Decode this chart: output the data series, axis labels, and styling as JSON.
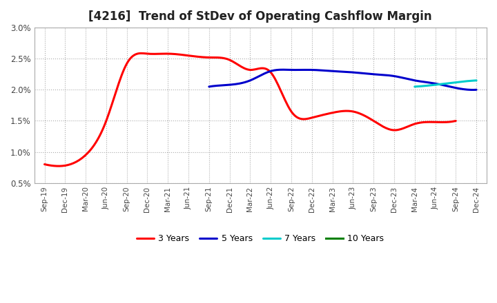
{
  "title": "[4216]  Trend of StDev of Operating Cashflow Margin",
  "ylim": [
    0.005,
    0.03
  ],
  "yticks": [
    0.005,
    0.01,
    0.015,
    0.02,
    0.025,
    0.03
  ],
  "ytick_labels": [
    "0.5%",
    "1.0%",
    "1.5%",
    "2.0%",
    "2.5%",
    "3.0%"
  ],
  "x_labels": [
    "Sep-19",
    "Dec-19",
    "Mar-20",
    "Jun-20",
    "Sep-20",
    "Dec-20",
    "Mar-21",
    "Jun-21",
    "Sep-21",
    "Dec-21",
    "Mar-22",
    "Jun-22",
    "Sep-22",
    "Dec-22",
    "Mar-23",
    "Jun-23",
    "Sep-23",
    "Dec-23",
    "Mar-24",
    "Jun-24",
    "Sep-24",
    "Dec-24"
  ],
  "series_3y": {
    "color": "#ff0000",
    "values": [
      0.008,
      0.0078,
      0.0095,
      0.015,
      0.0242,
      0.0258,
      0.0258,
      0.0255,
      0.0252,
      0.0248,
      0.0232,
      0.0228,
      0.0165,
      0.0155,
      0.0163,
      0.0165,
      0.015,
      0.0135,
      0.0145,
      0.0148,
      0.015,
      null
    ],
    "label": "3 Years"
  },
  "series_5y": {
    "color": "#0000cc",
    "values": [
      null,
      null,
      null,
      null,
      null,
      null,
      null,
      null,
      0.0205,
      0.0208,
      0.0215,
      0.023,
      0.0232,
      0.0232,
      0.023,
      0.0228,
      0.0225,
      0.0222,
      0.0215,
      0.021,
      0.0203,
      0.02
    ],
    "label": "5 Years"
  },
  "series_7y": {
    "color": "#00cccc",
    "values": [
      null,
      null,
      null,
      null,
      null,
      null,
      null,
      null,
      null,
      null,
      null,
      null,
      null,
      null,
      null,
      null,
      null,
      null,
      0.0205,
      0.0208,
      0.0212,
      0.0215
    ],
    "label": "7 Years"
  },
  "series_10y": {
    "color": "#008000",
    "values": [
      null,
      null,
      null,
      null,
      null,
      null,
      null,
      null,
      null,
      null,
      null,
      null,
      null,
      null,
      null,
      null,
      null,
      null,
      null,
      null,
      null,
      null
    ],
    "label": "10 Years"
  },
  "background_color": "#ffffff",
  "grid_color": "#aaaaaa",
  "title_fontsize": 12,
  "title_color": "#222222"
}
